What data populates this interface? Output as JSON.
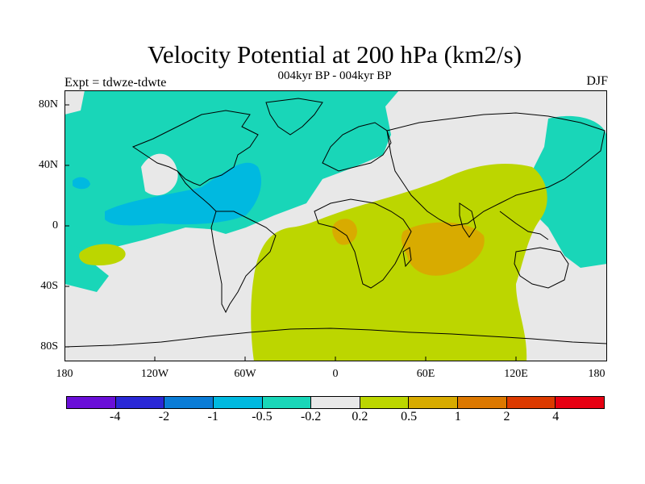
{
  "title": "Velocity Potential at 200 hPa (km2/s)",
  "subtitle": "004kyr BP - 004kyr BP",
  "experiment_label": "Expt = tdwze-tdwte",
  "season_label": "DJF",
  "lat_ticks": [
    "80N",
    "40N",
    "0",
    "40S",
    "80S"
  ],
  "lon_ticks": [
    "180",
    "120W",
    "60W",
    "0",
    "60E",
    "120E",
    "180"
  ],
  "colorbar": {
    "colors": [
      "#6a0fd8",
      "#2a28d6",
      "#0a7cd6",
      "#00b9e0",
      "#19d6b8",
      "#e8e8e8",
      "#bcd600",
      "#d8ab00",
      "#dc7800",
      "#dc3a00",
      "#e60012"
    ],
    "labels": [
      "-4",
      "-2",
      "-1",
      "-0.5",
      "-0.2",
      "0.2",
      "0.5",
      "1",
      "2",
      "4"
    ]
  },
  "map_colors": {
    "ocean_background": "#e8e8e8",
    "negative_fill": "#19d6b8",
    "strong_negative_fill": "#00b9e0",
    "positive_fill": "#bcd600",
    "strong_positive_fill": "#d8ab00"
  }
}
